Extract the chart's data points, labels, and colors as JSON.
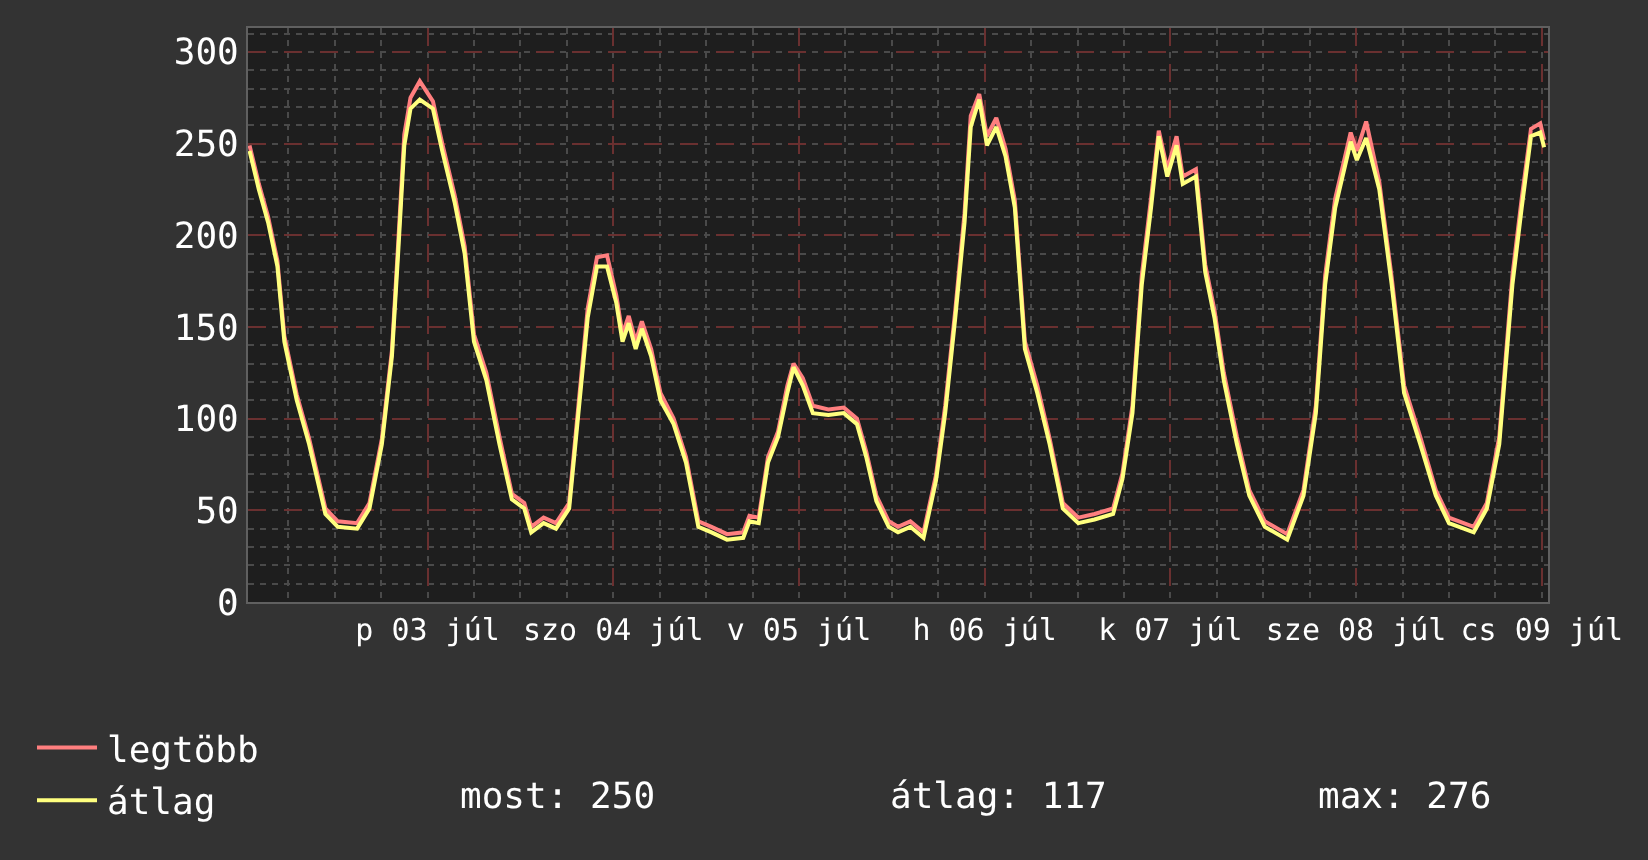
{
  "chart_data": {
    "type": "line",
    "x": [
      "--07-02T13:00",
      "--07-02T14:12",
      "--07-02T15:24",
      "--07-02T16:36",
      "--07-02T17:30",
      "--07-02T19:06",
      "--07-02T20:42",
      "--07-02T22:48",
      "--07-03T00:24",
      "--07-03T02:54",
      "--07-03T04:30",
      "--07-03T06:06",
      "--07-03T07:24",
      "--07-03T08:12",
      "--07-03T09:00",
      "--07-03T09:48",
      "--07-03T11:00",
      "--07-03T12:42",
      "--07-03T13:54",
      "--07-03T15:30",
      "--07-03T16:48",
      "--07-03T18:00",
      "--07-03T19:36",
      "--07-03T21:18",
      "--07-03T22:54",
      "--07-04T00:30",
      "--07-04T01:24",
      "--07-04T03:00",
      "--07-04T04:36",
      "--07-04T06:18",
      "--07-04T07:30",
      "--07-04T08:42",
      "--07-04T09:54",
      "--07-04T11:12",
      "--07-04T12:24",
      "--07-04T13:12",
      "--07-04T14:00",
      "--07-04T14:54",
      "--07-04T15:42",
      "--07-04T16:54",
      "--07-04T18:06",
      "--07-04T19:48",
      "--07-04T21:24",
      "--07-04T23:00",
      "--07-05T00:42",
      "--07-05T02:42",
      "--07-05T04:48",
      "--07-05T05:36",
      "--07-05T06:48",
      "--07-05T08:00",
      "--07-05T09:18",
      "--07-05T10:30",
      "--07-05T11:18",
      "--07-05T12:30",
      "--07-05T13:48",
      "--07-05T15:48",
      "--07-05T17:48",
      "--07-05T19:30",
      "--07-05T20:42",
      "--07-05T22:00",
      "--07-05T23:36",
      "--07-06T00:48",
      "--07-06T02:24",
      "--07-06T04:06",
      "--07-06T05:42",
      "--07-06T06:54",
      "--07-06T08:12",
      "--07-06T09:24",
      "--07-06T10:12",
      "--07-06T11:18",
      "--07-06T12:18",
      "--07-06T13:30",
      "--07-06T14:42",
      "--07-06T15:54",
      "--07-06T17:12",
      "--07-06T18:48",
      "--07-06T20:24",
      "--07-06T22:06",
      "--07-07T00:06",
      "--07-07T02:12",
      "--07-07T04:36",
      "--07-07T05:48",
      "--07-07T07:06",
      "--07-07T08:18",
      "--07-07T09:30",
      "--07-07T10:30",
      "--07-07T11:36",
      "--07-07T12:48",
      "--07-07T13:36",
      "--07-07T15:18",
      "--07-07T16:30",
      "--07-07T17:42",
      "--07-07T18:54",
      "--07-07T20:36",
      "--07-07T22:12",
      "--07-08T00:12",
      "--07-08T03:06",
      "--07-08T05:12",
      "--07-08T06:48",
      "--07-08T08:00",
      "--07-08T09:18",
      "--07-08T11:18",
      "--07-08T12:06",
      "--07-08T13:18",
      "--07-08T15:00",
      "--07-08T16:36",
      "--07-08T18:12",
      "--07-08T20:18",
      "--07-08T22:18",
      "--07-09T00:00",
      "--07-09T03:12",
      "--07-09T04:54",
      "--07-09T06:30",
      "--07-09T08:12",
      "--07-09T09:24",
      "--07-09T10:36",
      "--07-09T11:48",
      "--07-09T12:18"
    ],
    "series": [
      {
        "name": "legtöbb",
        "color": "#ff7f7f",
        "values": [
          249,
          228,
          210,
          186,
          145,
          113,
          89,
          51,
          44,
          43,
          54,
          89,
          137,
          195,
          255,
          275,
          284,
          273,
          250,
          222,
          194,
          146,
          125,
          90,
          59,
          54,
          41,
          46,
          43,
          54,
          107,
          160,
          188,
          189,
          167,
          146,
          156,
          142,
          153,
          138,
          114,
          100,
          79,
          44,
          41,
          37,
          38,
          47,
          46,
          79,
          93,
          118,
          130,
          122,
          107,
          105,
          106,
          100,
          82,
          58,
          44,
          41,
          44,
          38,
          69,
          107,
          159,
          212,
          265,
          277,
          254,
          264,
          247,
          219,
          142,
          118,
          89,
          54,
          46,
          48,
          51,
          70,
          107,
          178,
          220,
          257,
          236,
          254,
          232,
          236,
          184,
          159,
          125,
          90,
          61,
          44,
          37,
          61,
          107,
          178,
          220,
          256,
          246,
          262,
          229,
          177,
          118,
          90,
          61,
          46,
          41,
          54,
          90,
          178,
          220,
          258,
          261,
          252
        ]
      },
      {
        "name": "átlag",
        "color": "#ffff7f",
        "values": [
          246,
          225,
          207,
          183,
          142,
          110,
          86,
          48,
          41,
          40,
          51,
          86,
          134,
          190,
          249,
          269,
          274,
          269,
          246,
          218,
          190,
          142,
          121,
          86,
          56,
          51,
          38,
          43,
          40,
          51,
          103,
          155,
          183,
          183,
          163,
          142,
          152,
          138,
          149,
          134,
          110,
          97,
          76,
          41,
          38,
          34,
          35,
          44,
          43,
          76,
          90,
          114,
          128,
          118,
          103,
          102,
          103,
          97,
          79,
          55,
          41,
          38,
          41,
          35,
          66,
          103,
          155,
          207,
          259,
          274,
          249,
          259,
          243,
          215,
          138,
          114,
          86,
          51,
          43,
          45,
          48,
          67,
          103,
          173,
          215,
          254,
          232,
          249,
          228,
          232,
          180,
          155,
          121,
          86,
          58,
          41,
          34,
          58,
          103,
          173,
          215,
          251,
          241,
          253,
          225,
          173,
          114,
          86,
          58,
          43,
          38,
          51,
          86,
          173,
          215,
          254,
          256,
          248
        ]
      }
    ],
    "xlim": [
      "--07-02T12:48",
      "--07-09T12:48"
    ],
    "xticks": [
      {
        "value": "--07-03T12:00",
        "label": "p 03 júl"
      },
      {
        "value": "--07-04T12:00",
        "label": "szo 04 júl"
      },
      {
        "value": "--07-05T12:00",
        "label": "v 05 júl"
      },
      {
        "value": "--07-06T12:00",
        "label": "h 06 júl"
      },
      {
        "value": "--07-07T12:00",
        "label": "k 07 júl"
      },
      {
        "value": "--07-08T12:00",
        "label": "sze 08 júl"
      },
      {
        "value": "--07-09T12:00",
        "label": "cs 09 júl"
      }
    ],
    "ylim": [
      0,
      313
    ],
    "yticks": [
      0,
      50,
      100,
      150,
      200,
      250,
      300
    ],
    "grid": true,
    "legend": "bottom left",
    "annotations": [
      "most: 250",
      "átlag: 117",
      "max: 276"
    ]
  }
}
